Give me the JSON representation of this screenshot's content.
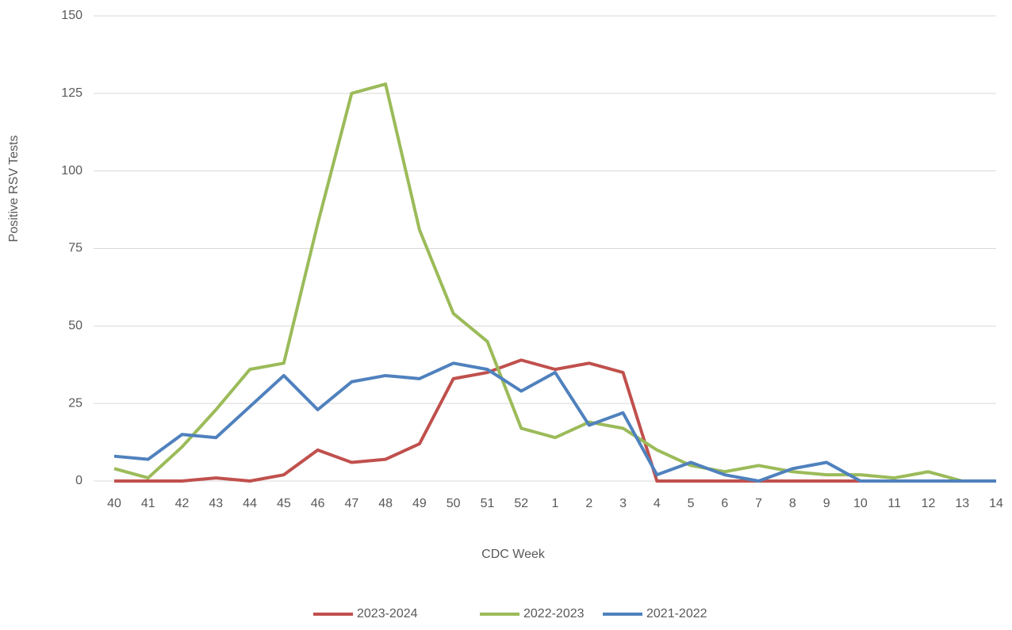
{
  "chart_data": {
    "type": "line",
    "x_label": "CDC Week",
    "y_label": "Positive RSV Tests",
    "categories": [
      "40",
      "41",
      "42",
      "43",
      "44",
      "45",
      "46",
      "47",
      "48",
      "49",
      "50",
      "51",
      "52",
      "1",
      "2",
      "3",
      "4",
      "5",
      "6",
      "7",
      "8",
      "9",
      "10",
      "11",
      "12",
      "13",
      "14"
    ],
    "series": [
      {
        "name": "2023-2024",
        "color": "#c0504d",
        "values": [
          0,
          0,
          0,
          1,
          0,
          2,
          10,
          6,
          7,
          12,
          33,
          35,
          39,
          36,
          38,
          35,
          0,
          0,
          0,
          0,
          0,
          0,
          0,
          0,
          0,
          0,
          0
        ]
      },
      {
        "name": "2022-2023",
        "color": "#9bbb59",
        "values": [
          4,
          1,
          11,
          23,
          36,
          38,
          83,
          125,
          128,
          81,
          54,
          45,
          17,
          14,
          19,
          17,
          10,
          5,
          3,
          5,
          3,
          2,
          2,
          1,
          3,
          0,
          0
        ]
      },
      {
        "name": "2021-2022",
        "color": "#4f81bd",
        "values": [
          8,
          7,
          15,
          14,
          24,
          34,
          23,
          32,
          34,
          33,
          38,
          36,
          29,
          35,
          18,
          22,
          2,
          6,
          2,
          0,
          4,
          6,
          0,
          0,
          0,
          0,
          0
        ]
      }
    ],
    "ylim": [
      0,
      150
    ],
    "yticks": [
      0,
      25,
      50,
      75,
      100,
      125,
      150
    ],
    "grid": true,
    "legend": "bottom"
  }
}
